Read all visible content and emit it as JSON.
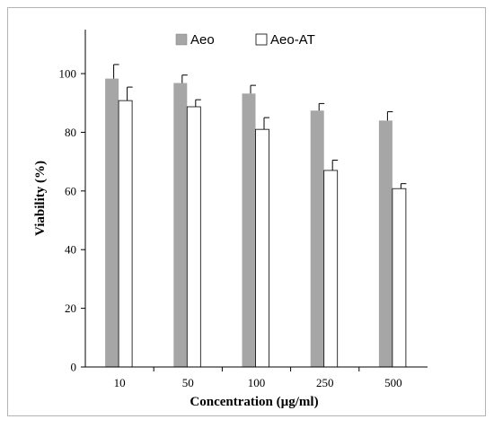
{
  "chart_data": {
    "type": "bar",
    "title": "",
    "xlabel": "Concentration (µg/ml)",
    "ylabel": "Viability (%)",
    "categories": [
      "10",
      "50",
      "100",
      "250",
      "500"
    ],
    "ylim": [
      0,
      115
    ],
    "yticks": [
      "0",
      "20",
      "40",
      "60",
      "80",
      "100"
    ],
    "grid": false,
    "legend_position": "top-center",
    "series": [
      {
        "name": "Aeo",
        "color": "#a6a6a6",
        "values": [
          98.3,
          96.8,
          93.2,
          87.4,
          84.0
        ],
        "errors": [
          4.8,
          2.7,
          2.8,
          2.4,
          3.0
        ]
      },
      {
        "name": "Aeo-AT",
        "color": "#ffffff",
        "values": [
          90.8,
          88.7,
          81.0,
          67.0,
          60.8
        ],
        "errors": [
          4.6,
          2.4,
          4.0,
          3.5,
          1.7
        ]
      }
    ]
  }
}
